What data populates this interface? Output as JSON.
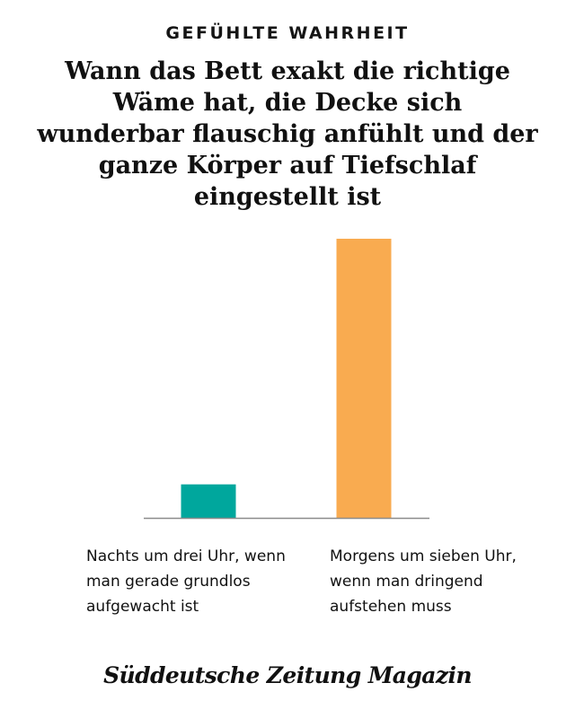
{
  "kicker": "GEFÜHLTE WAHRHEIT",
  "headline": "Wann das Bett exakt die richtige Wäme hat, die Decke sich wunderbar flauschig anfühlt und der ganze Körper auf Tiefschlaf eingestellt ist",
  "brand": "Süddeutsche Zeitung Magazin",
  "colors": {
    "bar_left": "#00a79d",
    "bar_right": "#f9ab50",
    "baseline": "#8c8c8c"
  },
  "chart_data": {
    "type": "bar",
    "title": "Wann das Bett exakt die richtige Wäme hat, die Decke sich wunderbar flauschig anfühlt und der ganze Körper auf Tiefschlaf eingestellt ist",
    "categories": [
      "Nachts um drei Uhr, wenn man gerade grundlos aufgewacht ist",
      "Morgens um sieben Uhr, wenn man dringend aufstehen muss"
    ],
    "values": [
      12,
      100
    ],
    "ylim": [
      0,
      100
    ],
    "xlabel": "",
    "ylabel": "",
    "grid": false,
    "legend": "none"
  }
}
